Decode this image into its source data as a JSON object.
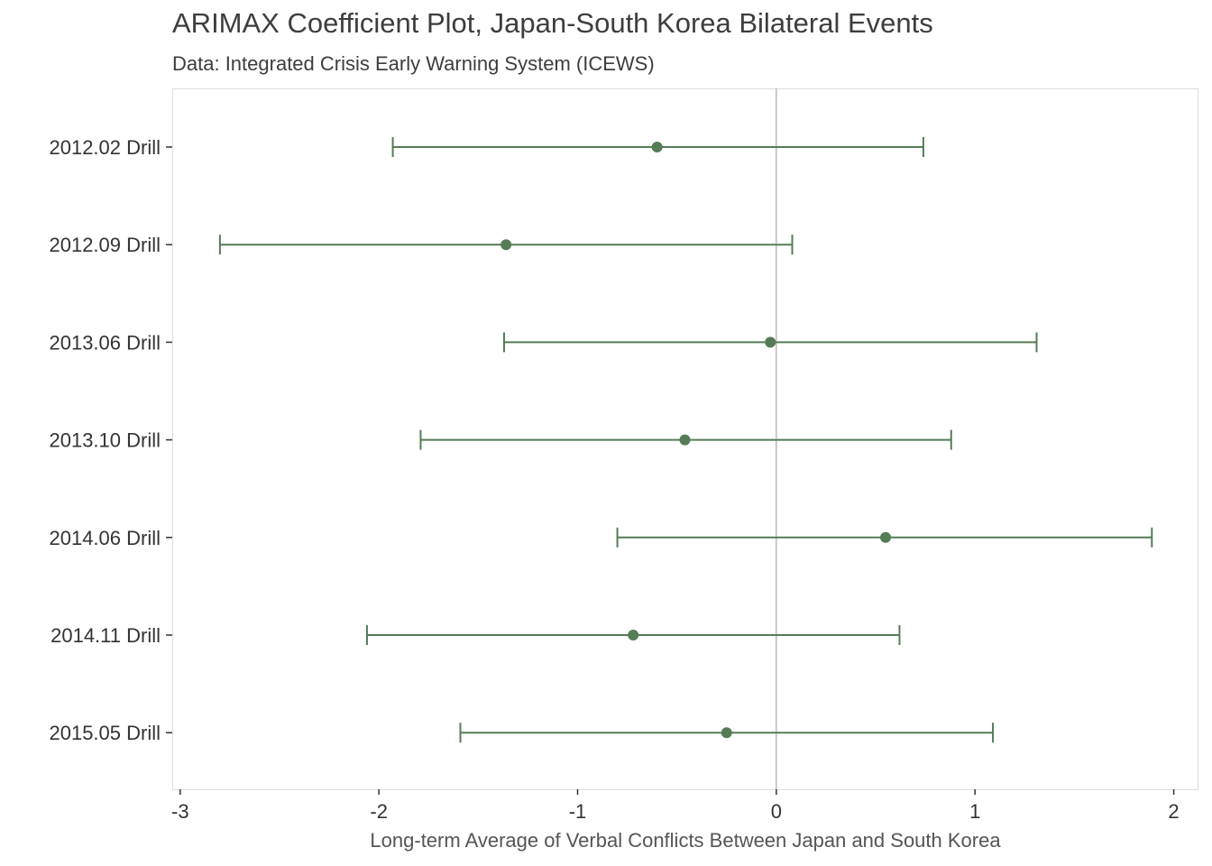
{
  "chart_data": {
    "type": "coefficient-plot",
    "title": "ARIMAX Coefficient Plot, Japan-South Korea Bilateral Events",
    "subtitle": "Data: Integrated Crisis Early Warning System (ICEWS)",
    "xlabel": "Long-term Average of Verbal Conflicts Between Japan and South Korea",
    "ylabel": "",
    "xlim": [
      -3.04,
      2.12
    ],
    "x_ticks": [
      -3,
      -2,
      -1,
      0,
      1,
      2
    ],
    "x_tick_labels": [
      "-3",
      "-2",
      "-1",
      "0",
      "1",
      "2"
    ],
    "reference_line_x": 0,
    "grid": false,
    "color": "#547c56",
    "categories": [
      "2012.02 Drill",
      "2012.09 Drill",
      "2013.06 Drill",
      "2013.10 Drill",
      "2014.06 Drill",
      "2014.11 Drill",
      "2015.05 Drill"
    ],
    "estimates": [
      -0.6,
      -1.36,
      -0.03,
      -0.46,
      0.55,
      -0.72,
      -0.25
    ],
    "lower": [
      -1.93,
      -2.8,
      -1.37,
      -1.79,
      -0.8,
      -2.06,
      -1.59
    ],
    "upper": [
      0.74,
      0.08,
      1.31,
      0.88,
      1.89,
      0.62,
      1.09
    ]
  }
}
